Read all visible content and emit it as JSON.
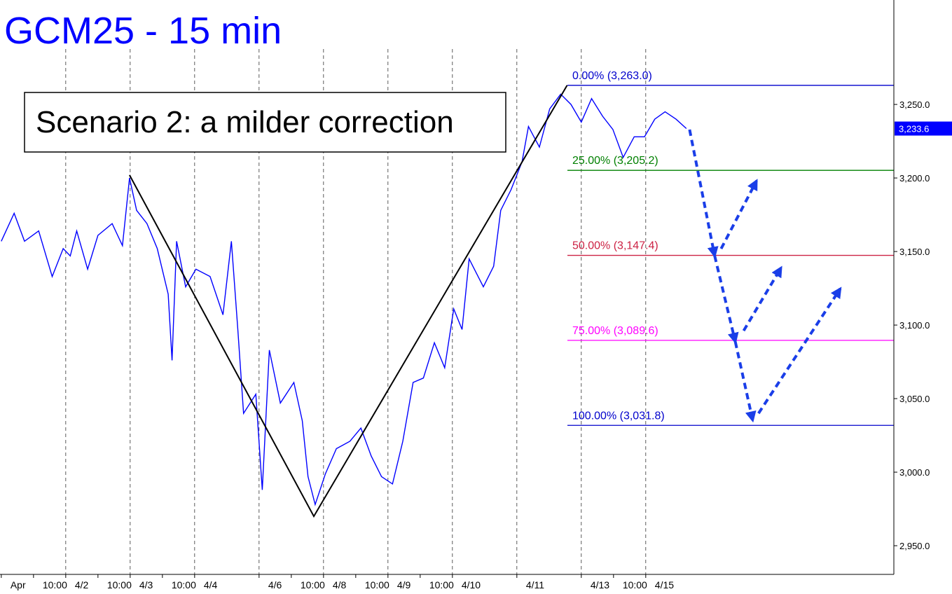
{
  "chart_data": {
    "type": "line",
    "title": "GCM25 - 15 min",
    "annotation": "Scenario 2: a milder correction",
    "color": "#0000ff",
    "x": [
      0,
      0.2,
      0.36,
      0.58,
      0.79,
      0.96,
      1.07,
      1.17,
      1.34,
      1.5,
      1.72,
      1.88,
      1.99,
      2.1,
      2.26,
      2.42,
      2.59,
      2.65,
      2.72,
      2.86,
      3.02,
      3.24,
      3.44,
      3.57,
      3.67,
      3.76,
      3.95,
      4.05,
      4.16,
      4.33,
      4.54,
      4.67,
      4.76,
      4.87,
      5.03,
      5.2,
      5.41,
      5.58,
      5.74,
      5.9,
      6.07,
      6.23,
      6.39,
      6.55,
      6.72,
      6.88,
      7.02,
      7.15,
      7.26,
      7.48,
      7.64,
      7.75,
      7.91,
      8.08,
      8.18,
      8.35,
      8.51,
      8.68,
      8.84,
      9.0,
      9.16,
      9.33,
      9.49,
      9.65,
      9.82,
      9.98,
      10.14,
      10.3,
      10.47,
      10.63
    ],
    "values": [
      3157,
      3176,
      3157,
      3164,
      3133,
      3152,
      3147,
      3164,
      3138,
      3161,
      3169,
      3154,
      3200,
      3178,
      3169,
      3152,
      3121,
      3076,
      3157,
      3126,
      3138,
      3133,
      3107,
      3157,
      3097,
      3040,
      3053,
      2988,
      3083,
      3047,
      3061,
      3035,
      2997,
      2978,
      2999,
      3016,
      3021,
      3030,
      3011,
      2997,
      2992,
      3021,
      3061,
      3064,
      3088,
      3071,
      3111,
      3097,
      3145,
      3126,
      3140,
      3178,
      3192,
      3211,
      3235,
      3221,
      3247,
      3257,
      3250,
      3238,
      3254,
      3242,
      3233,
      3214,
      3228,
      3228,
      3240,
      3245,
      3240,
      3233.6
    ],
    "last_value": {
      "value": 3233.6,
      "label": "3,233.6"
    },
    "fib_levels": [
      {
        "name": "0.00%",
        "value": 3263.0,
        "value_label": "(3,263.0)",
        "color": "#0000cc"
      },
      {
        "name": "25.00%",
        "value": 3205.2,
        "value_label": "(3,205.2)",
        "color": "#008000"
      },
      {
        "name": "50.00%",
        "value": 3147.4,
        "value_label": "(3,147.4)",
        "color": "#cc2244"
      },
      {
        "name": "75.00%",
        "value": 3089.6,
        "value_label": "(3,089.6)",
        "color": "#ff00ff"
      },
      {
        "name": "100.00%",
        "value": 3031.8,
        "value_label": "(3,031.8)",
        "color": "#0000cc"
      }
    ],
    "trend_line": {
      "x": [
        1.99,
        4.85,
        8.78
      ],
      "values": [
        3202,
        2970,
        3263
      ],
      "color": "#000000"
    },
    "projection_color": "#1a3ee8",
    "projections": [
      {
        "x": [
          10.68,
          11.07
        ],
        "values": [
          3232.9,
          3147.1
        ]
      },
      {
        "x": [
          11.17,
          11.72
        ],
        "values": [
          3151.9,
          3198.1
        ]
      },
      {
        "x": [
          11.07,
          11.39
        ],
        "values": [
          3147.1,
          3088.6
        ]
      },
      {
        "x": [
          11.52,
          12.1
        ],
        "values": [
          3096.2,
          3139.0
        ]
      },
      {
        "x": [
          11.39,
          11.66
        ],
        "values": [
          3088.6,
          3035.2
        ]
      },
      {
        "x": [
          11.75,
          13.02
        ],
        "values": [
          3040.0,
          3124.8
        ]
      }
    ],
    "xlim": [
      -0.02,
      13.85
    ],
    "ylim": [
      2930.5,
      3321
    ],
    "xticks": [
      {
        "value": 0,
        "label": "Apr"
      },
      {
        "value": 0.5,
        "label": "10:00"
      },
      {
        "value": 1,
        "label": "4/2"
      },
      {
        "value": 1.5,
        "label": "10:00"
      },
      {
        "value": 2,
        "label": "4/3"
      },
      {
        "value": 2.5,
        "label": "10:00"
      },
      {
        "value": 3,
        "label": "4/4"
      },
      {
        "value": 4,
        "label": "4/6"
      },
      {
        "value": 4.5,
        "label": "10:00"
      },
      {
        "value": 5,
        "label": "4/8"
      },
      {
        "value": 5.5,
        "label": "10:00"
      },
      {
        "value": 6,
        "label": "4/9"
      },
      {
        "value": 6.5,
        "label": "10:00"
      },
      {
        "value": 7,
        "label": "4/10"
      },
      {
        "value": 8,
        "label": "4/11"
      },
      {
        "value": 9,
        "label": "4/13"
      },
      {
        "value": 9.5,
        "label": "10:00"
      },
      {
        "value": 10,
        "label": "4/15"
      }
    ],
    "yticks": [
      {
        "value": 2950,
        "label": "2,950.0"
      },
      {
        "value": 3000,
        "label": "3,000.0"
      },
      {
        "value": 3050,
        "label": "3,050.0"
      },
      {
        "value": 3100,
        "label": "3,100.0"
      },
      {
        "value": 3150,
        "label": "3,150.0"
      },
      {
        "value": 3200,
        "label": "3,200.0"
      },
      {
        "value": 3250,
        "label": "3,250.0"
      }
    ],
    "grid": true
  }
}
